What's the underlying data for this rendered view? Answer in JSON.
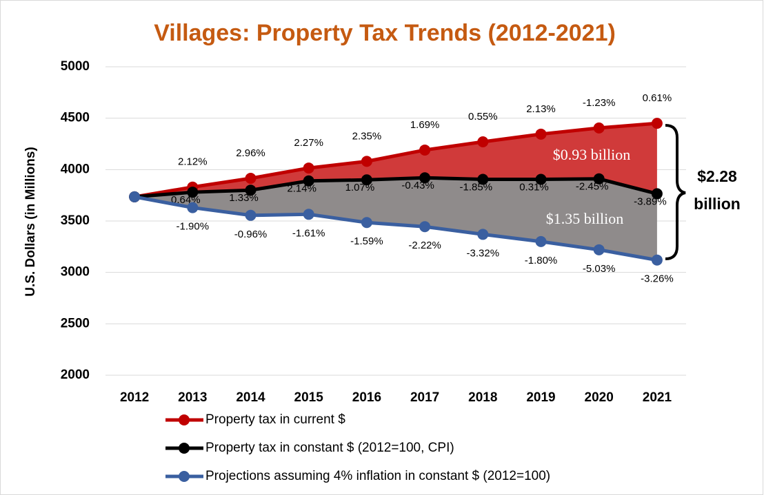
{
  "chart_data": {
    "type": "line",
    "title": "Villages: Property Tax Trends (2012-2021)",
    "y_label": "U.S. Dollars (in Millions)",
    "categories": [
      "2012",
      "2013",
      "2014",
      "2015",
      "2016",
      "2017",
      "2018",
      "2019",
      "2020",
      "2021"
    ],
    "ylim": [
      2000,
      5000
    ],
    "yticks": [
      2000,
      2500,
      3000,
      3500,
      4000,
      4500,
      5000
    ],
    "grid": true,
    "series": [
      {
        "name": "Property tax in current $",
        "color": "#c00000",
        "values": [
          3735,
          3830,
          3915,
          4015,
          4080,
          4190,
          4270,
          4345,
          4405,
          4450
        ],
        "annotations": [
          null,
          "2.12%",
          "2.96%",
          "2.27%",
          "2.35%",
          "1.69%",
          "0.55%",
          "2.13%",
          "-1.23%",
          "0.61%"
        ]
      },
      {
        "name": "Property tax in constant $ (2012=100, CPI)",
        "color": "#000000",
        "values": [
          3735,
          3780,
          3800,
          3890,
          3900,
          3920,
          3905,
          3905,
          3910,
          3765
        ],
        "annotations": [
          null,
          "0.64%",
          "1.33%",
          "2.14%",
          "1.07%",
          "-0.43%",
          "-1.85%",
          "0.31%",
          "-2.45%",
          "-3.89%"
        ]
      },
      {
        "name": "Projections assuming 4% inflation in constant $ (2012=100)",
        "color": "#3a5fa0",
        "values": [
          3735,
          3630,
          3555,
          3565,
          3485,
          3445,
          3370,
          3300,
          3220,
          3120
        ],
        "annotations": [
          null,
          "-1.90%",
          "-0.96%",
          "-1.61%",
          "-1.59%",
          "-2.22%",
          "-3.32%",
          "-1.80%",
          "-5.03%",
          "-3.26%"
        ]
      }
    ],
    "area_colors": [
      "#d03a3a",
      "#8f8b8b"
    ],
    "gap_labels": [
      "$0.93 billion",
      "$1.35 billion"
    ],
    "total_label": [
      "$2.28",
      "billion"
    ]
  }
}
